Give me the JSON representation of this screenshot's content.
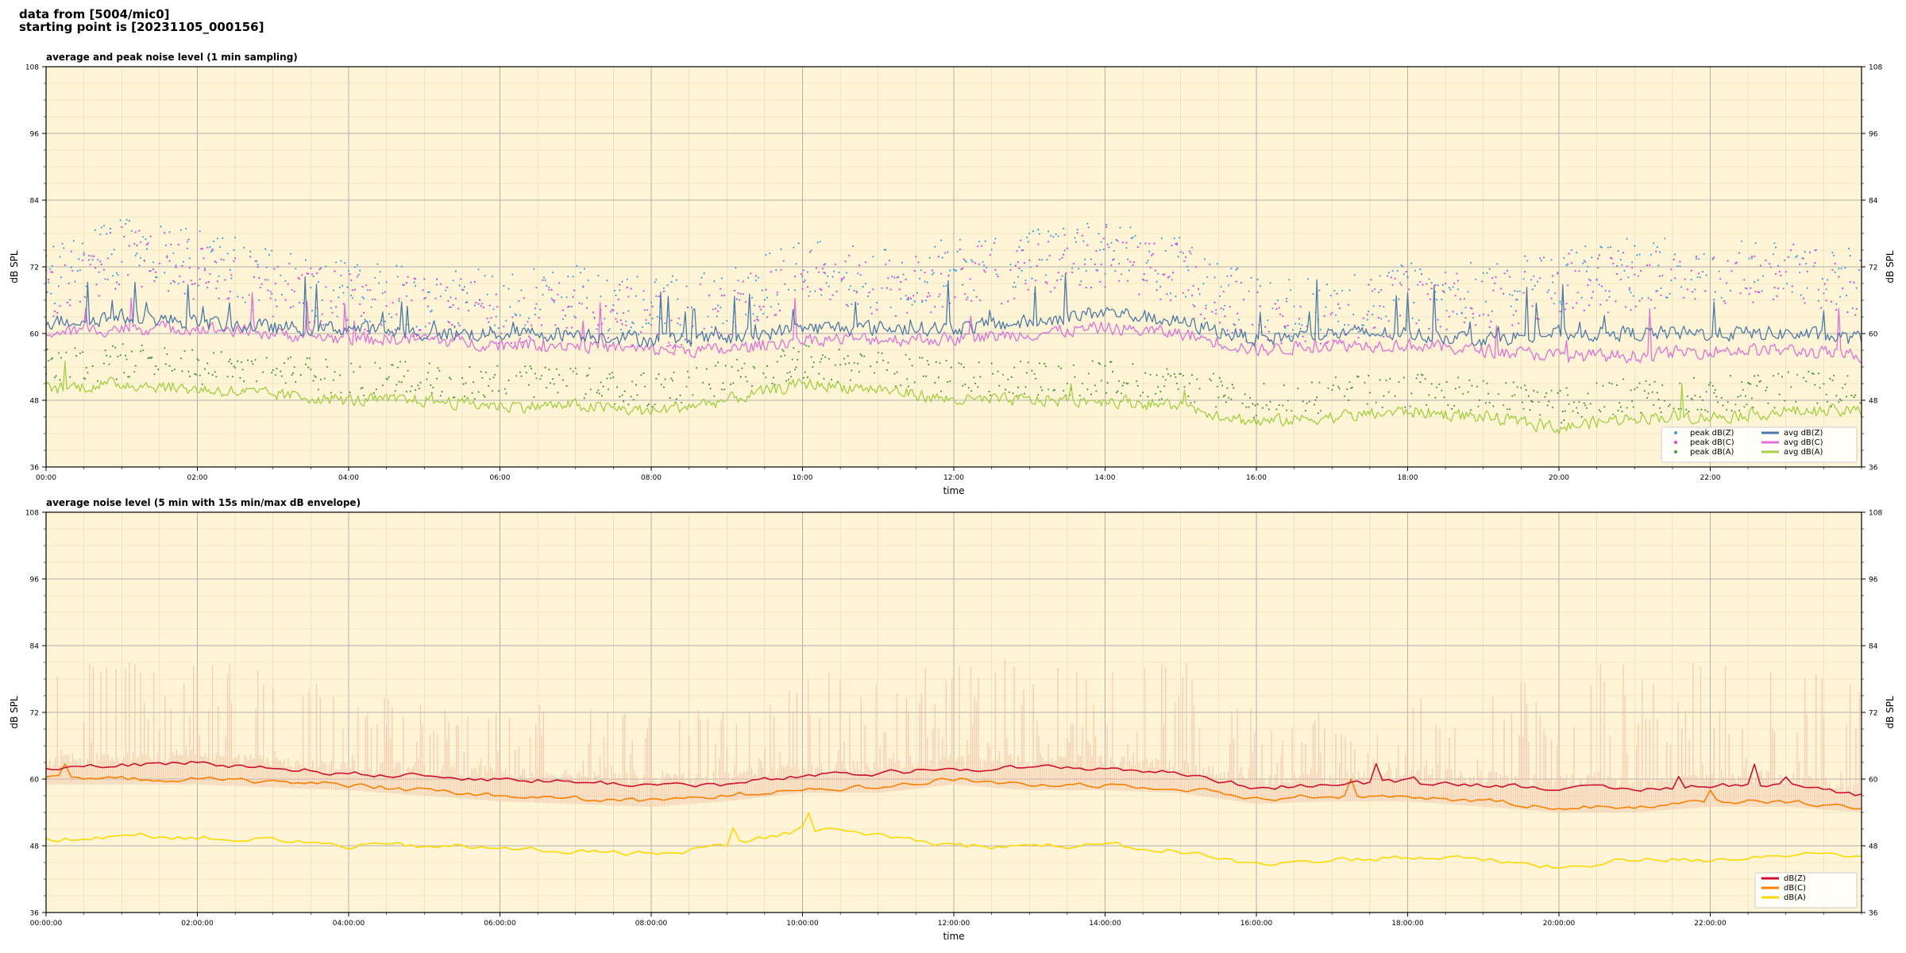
{
  "header": {
    "line1": "data from [5004/mic0]",
    "line2": "starting point is [20231105_000156]"
  },
  "colors": {
    "panel_bg": "#fff5d6",
    "peak_z": "#3aa0e0",
    "peak_c": "#e040e0",
    "peak_a": "#4a9a40",
    "avg_z": "#4a7aa8",
    "avg_c": "#e070d8",
    "avg_a": "#a0d040",
    "dbz": "#d01030",
    "dbc": "#ff8000",
    "dba": "#ffd800",
    "envelope": "#f5b8a0"
  },
  "chart_data": [
    {
      "type": "scatter",
      "title": "average and peak noise level (1 min sampling)",
      "xlabel": "time",
      "ylabel": "dB SPL",
      "xlim": [
        0,
        24
      ],
      "ylim": [
        36,
        108
      ],
      "yticks": [
        36,
        48,
        60,
        72,
        84,
        96,
        108
      ],
      "xticks": [
        "00:00",
        "02:00",
        "04:00",
        "06:00",
        "08:00",
        "10:00",
        "12:00",
        "14:00",
        "16:00",
        "18:00",
        "20:00",
        "22:00"
      ],
      "grid": true,
      "legend": "bottom-right",
      "legend_entries": [
        "peak dB(Z)",
        "peak dB(C)",
        "peak dB(A)",
        "avg dB(Z)",
        "avg dB(C)",
        "avg dB(A)"
      ],
      "series": [
        {
          "name": "avg dB(Z)",
          "x": [
            0,
            1,
            2,
            3,
            4,
            5,
            6,
            7,
            8,
            9,
            10,
            11,
            12,
            13,
            14,
            15,
            16,
            17,
            18,
            19,
            20,
            21,
            22,
            23,
            24
          ],
          "values": [
            62,
            63,
            62,
            61,
            61,
            60,
            60,
            60,
            59,
            59,
            61,
            61,
            61,
            62,
            64,
            62,
            59,
            60,
            60,
            59,
            60,
            60,
            60,
            60,
            59
          ]
        },
        {
          "name": "avg dB(C)",
          "x": [
            0,
            1,
            2,
            3,
            4,
            5,
            6,
            7,
            8,
            9,
            10,
            11,
            12,
            13,
            14,
            15,
            16,
            17,
            18,
            19,
            20,
            21,
            22,
            23,
            24
          ],
          "values": [
            60,
            61,
            61,
            60,
            59,
            59,
            58,
            58,
            57,
            57,
            59,
            59,
            59,
            60,
            61,
            60,
            57,
            58,
            58,
            57,
            56,
            56,
            57,
            57,
            56
          ]
        },
        {
          "name": "avg dB(A)",
          "x": [
            0,
            1,
            2,
            3,
            4,
            5,
            6,
            7,
            8,
            9,
            10,
            11,
            12,
            13,
            14,
            15,
            16,
            17,
            18,
            19,
            20,
            21,
            22,
            23,
            24
          ],
          "values": [
            50,
            51,
            50,
            49,
            48,
            48,
            47,
            47,
            46,
            48,
            51,
            50,
            48,
            48,
            48,
            47,
            44,
            45,
            46,
            45,
            43,
            45,
            45,
            46,
            46
          ]
        },
        {
          "name": "peak dB(Z)",
          "x": [
            0,
            1,
            2,
            3,
            4,
            5,
            6,
            7,
            8,
            9,
            10,
            11,
            12,
            13,
            14,
            15,
            16,
            17,
            18,
            19,
            20,
            21,
            22,
            23,
            24
          ],
          "values": [
            68,
            74,
            72,
            68,
            66,
            65,
            64,
            65,
            63,
            64,
            70,
            68,
            70,
            72,
            73,
            70,
            63,
            63,
            66,
            66,
            69,
            70,
            70,
            71,
            68
          ]
        },
        {
          "name": "peak dB(C)",
          "x": [
            0,
            1,
            2,
            3,
            4,
            5,
            6,
            7,
            8,
            9,
            10,
            11,
            12,
            13,
            14,
            15,
            16,
            17,
            18,
            19,
            20,
            21,
            22,
            23,
            24
          ],
          "values": [
            66,
            72,
            70,
            66,
            64,
            63,
            62,
            63,
            61,
            62,
            68,
            66,
            68,
            70,
            72,
            69,
            61,
            61,
            64,
            64,
            67,
            68,
            68,
            70,
            66
          ]
        },
        {
          "name": "peak dB(A)",
          "x": [
            0,
            1,
            2,
            3,
            4,
            5,
            6,
            7,
            8,
            9,
            10,
            11,
            12,
            13,
            14,
            15,
            16,
            17,
            18,
            19,
            20,
            21,
            22,
            23,
            24
          ],
          "values": [
            53,
            54,
            53,
            52,
            51,
            51,
            50,
            50,
            49,
            51,
            54,
            53,
            51,
            51,
            51,
            50,
            47,
            48,
            49,
            48,
            46,
            48,
            48,
            49,
            49
          ]
        }
      ]
    },
    {
      "type": "line",
      "title": "average noise level (5 min with 15s min/max dB envelope)",
      "xlabel": "time",
      "ylabel": "dB SPL",
      "xlim": [
        0,
        24
      ],
      "ylim": [
        36,
        108
      ],
      "yticks": [
        36,
        48,
        60,
        72,
        84,
        96,
        108
      ],
      "xticks": [
        "00:00:00",
        "02:00:00",
        "04:00:00",
        "06:00:00",
        "08:00:00",
        "10:00:00",
        "12:00:00",
        "14:00:00",
        "16:00:00",
        "18:00:00",
        "20:00:00",
        "22:00:00"
      ],
      "grid": true,
      "legend": "bottom-right",
      "legend_entries": [
        "dB(Z)",
        "dB(C)",
        "dB(A)"
      ],
      "series": [
        {
          "name": "dB(Z)",
          "x": [
            0,
            1,
            2,
            3,
            4,
            5,
            6,
            7,
            8,
            9,
            10,
            11,
            12,
            13,
            14,
            15,
            16,
            17,
            18,
            19,
            20,
            21,
            22,
            23,
            24
          ],
          "values": [
            62,
            62.5,
            63,
            62,
            61,
            60.5,
            60,
            59.5,
            59,
            59,
            60.5,
            61,
            62,
            62,
            62,
            61,
            58.5,
            59,
            59.5,
            59,
            58.5,
            58,
            59,
            59,
            57
          ]
        },
        {
          "name": "dB(C)",
          "x": [
            0,
            1,
            2,
            3,
            4,
            5,
            6,
            7,
            8,
            9,
            10,
            11,
            12,
            13,
            14,
            15,
            16,
            17,
            18,
            19,
            20,
            21,
            22,
            23,
            24
          ],
          "values": [
            60,
            60,
            60,
            59.5,
            59,
            58,
            57,
            56.5,
            56,
            57,
            58.5,
            58.5,
            60,
            59,
            59,
            58.5,
            56.5,
            57,
            57,
            56,
            55,
            55,
            56,
            56,
            55
          ]
        },
        {
          "name": "dB(A)",
          "x": [
            0,
            1,
            2,
            3,
            4,
            5,
            6,
            7,
            8,
            9,
            10,
            11,
            12,
            13,
            14,
            15,
            16,
            17,
            18,
            19,
            20,
            21,
            22,
            23,
            24
          ],
          "values": [
            49,
            50,
            49.5,
            49,
            48,
            48,
            47.5,
            47,
            46.5,
            48,
            51,
            50,
            48,
            48,
            48,
            47,
            44.5,
            45.5,
            46,
            45.5,
            44,
            45.5,
            45.5,
            46.5,
            46.5
          ]
        },
        {
          "name": "envelope max",
          "x": [
            0,
            1,
            2,
            3,
            4,
            5,
            6,
            7,
            8,
            9,
            10,
            11,
            12,
            13,
            14,
            15,
            16,
            17,
            18,
            19,
            20,
            21,
            22,
            23,
            24
          ],
          "values": [
            70,
            76,
            75,
            71,
            68,
            67,
            65,
            66,
            64,
            66,
            72,
            70,
            74,
            75,
            76,
            74,
            64,
            64,
            68,
            68,
            72,
            74,
            73,
            74,
            70
          ]
        }
      ]
    }
  ]
}
